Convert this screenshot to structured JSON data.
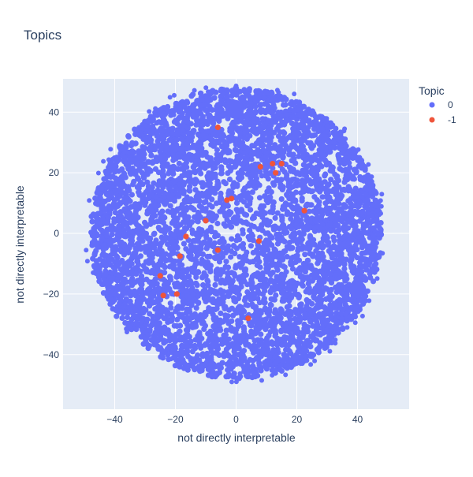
{
  "chart_data": {
    "type": "scatter",
    "title": "Topics",
    "xlabel": "not directly interpretable",
    "ylabel": "not directly interpretable",
    "xlim": [
      -57,
      57
    ],
    "ylim": [
      -58,
      51
    ],
    "xticks": [
      -40,
      -20,
      0,
      20,
      40
    ],
    "yticks": [
      40,
      20,
      0,
      -20,
      -40
    ],
    "grid": true,
    "legend": {
      "title": "Topic",
      "placement": "top-right",
      "entries": [
        {
          "label": "0",
          "color": "#636efa"
        },
        {
          "label": "-1",
          "color": "#ef553b"
        }
      ]
    },
    "series": [
      {
        "name": "0",
        "color": "#636efa",
        "shape": "dense-disc",
        "center": [
          0,
          0
        ],
        "radius": 48
      },
      {
        "name": "-1",
        "color": "#ef553b",
        "points": [
          [
            -6,
            35
          ],
          [
            8,
            22
          ],
          [
            12,
            23
          ],
          [
            15,
            23
          ],
          [
            13,
            20
          ],
          [
            -3,
            11
          ],
          [
            -1.5,
            11.5
          ],
          [
            22.5,
            7.5
          ],
          [
            -10,
            4.2
          ],
          [
            -16.5,
            -1
          ],
          [
            -6,
            -5.5
          ],
          [
            7.5,
            -2.5
          ],
          [
            -18.5,
            -7.5
          ],
          [
            -25,
            -14
          ],
          [
            -24,
            -20.5
          ],
          [
            -19.5,
            -20
          ],
          [
            4,
            -28
          ]
        ]
      }
    ]
  }
}
